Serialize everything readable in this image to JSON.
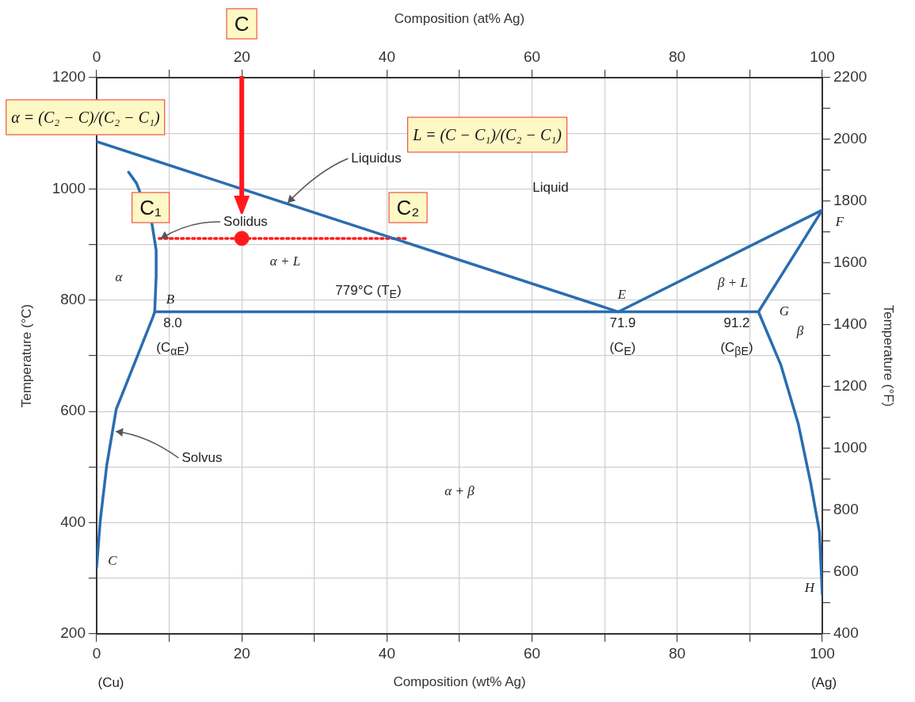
{
  "chart_data": {
    "type": "line",
    "xlabel": "Composition (wt% Ag)",
    "x2label": "Composition (at% Ag)",
    "ylabel": "Temperature (°C)",
    "y2label": "Temperature (°F)",
    "xlim": [
      0,
      100
    ],
    "xticks": [
      0,
      {
        "value": 10,
        "label": null
      },
      20,
      {
        "value": 30,
        "label": null
      },
      40,
      {
        "value": 50,
        "label": null
      },
      60,
      {
        "value": 70,
        "label": null
      },
      80,
      {
        "value": 90,
        "label": null
      },
      100
    ],
    "x2lim": [
      0,
      100
    ],
    "x2ticks": [
      0,
      {
        "value": 10,
        "label": null
      },
      20,
      {
        "value": 30,
        "label": null
      },
      40,
      {
        "value": 50,
        "label": null
      },
      60,
      {
        "value": 70,
        "label": null
      },
      80,
      {
        "value": 90,
        "label": null
      },
      100
    ],
    "ylim": [
      200,
      1200
    ],
    "yticks": [
      200,
      {
        "value": 300,
        "label": null
      },
      400,
      {
        "value": 500,
        "label": null
      },
      600,
      {
        "value": 700,
        "label": null
      },
      800,
      {
        "value": 900,
        "label": null
      },
      1000,
      {
        "value": 1100,
        "label": null
      },
      1200
    ],
    "y2lim": [
      400,
      2200
    ],
    "y2ticks": [
      400,
      {
        "value": 500,
        "label": null
      },
      600,
      {
        "value": 700,
        "label": null
      },
      800,
      {
        "value": 900,
        "label": null
      },
      1000,
      {
        "value": 1100,
        "label": null
      },
      1200,
      {
        "value": 1300,
        "label": null
      },
      1400,
      {
        "value": 1500,
        "label": null
      },
      1600,
      {
        "value": 1700,
        "label": null
      },
      1800,
      {
        "value": 1900,
        "label": null
      },
      2000,
      {
        "value": 2100,
        "label": null
      },
      2200
    ],
    "grid": true,
    "legend": false,
    "marker": "none",
    "series": [
      {
        "color": "#2a6db0",
        "x": [
          0,
          71.9
        ],
        "values": [
          1085,
          779
        ]
      },
      {
        "color": "#2a6db0",
        "x": [
          71.9,
          100
        ],
        "values": [
          779,
          962
        ]
      },
      {
        "color": "#2a6db0",
        "x": [
          4.4,
          5.5,
          7.6,
          8.2,
          8.2,
          8.0,
          7.8,
          4.9,
          2.7,
          1.4,
          0.5,
          0
        ],
        "values": [
          1030,
          1010,
          939,
          890,
          843,
          779,
          771,
          676,
          604,
          504,
          404,
          320
        ]
      },
      {
        "color": "#2a6db0",
        "x": [
          8.0,
          91.2
        ],
        "values": [
          779,
          779
        ]
      },
      {
        "color": "#2a6db0",
        "x": [
          100,
          91.2,
          94.3,
          96.7,
          98.4,
          99.6,
          100
        ],
        "values": [
          962,
          779,
          683,
          577,
          471,
          384,
          270
        ]
      },
      {
        "color": "#ff1a1a",
        "line_style": "dotted",
        "x": [
          8.6,
          42.9
        ],
        "values": [
          911,
          911
        ]
      },
      {
        "type": "scatter",
        "color": "#ff1a1a",
        "marker": "circle",
        "x": [
          20
        ],
        "values": [
          911
        ]
      }
    ],
    "annotations": [
      "α = (C₂ − C)/(C₂ − C₁)",
      "L = (C − C₁)/(C₂ − C₁)",
      "C",
      "C₁",
      "C₂",
      {
        "text": "Liquidus",
        "x": 26,
        "y": 975
      },
      {
        "text": "Solidus",
        "x": 8.5,
        "y": 911
      },
      {
        "text": "Solvus",
        "x": 2.3,
        "y": 564
      },
      "Liquid",
      "α",
      "α + L",
      "779°C (T$_{E}$)",
      "β + L",
      "β",
      "G",
      "B",
      "E",
      "F",
      "C",
      "H",
      "8.0",
      "(C$_{αE}$)",
      "71.9",
      "(C$_{E}$)",
      "91.2",
      "(C$_{βE}$)",
      "α + β",
      "(Cu)",
      "(Ag)"
    ]
  }
}
